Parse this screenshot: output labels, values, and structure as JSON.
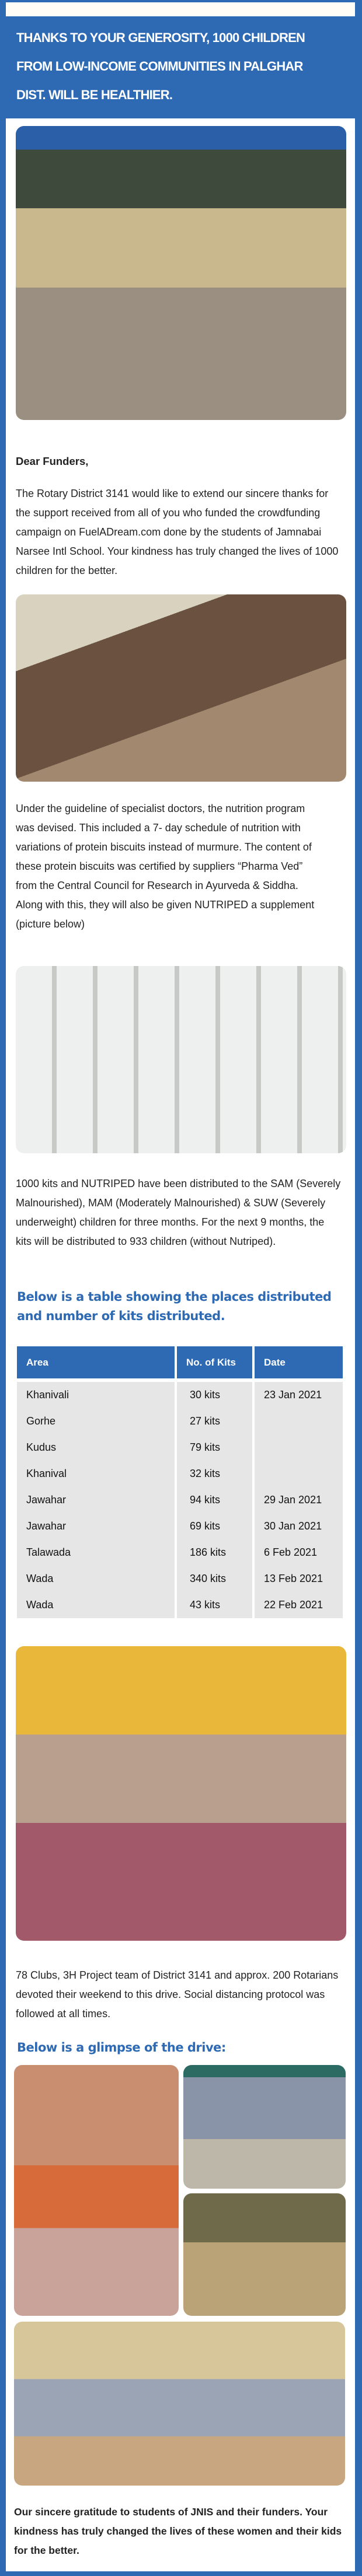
{
  "header": {
    "title_lines": [
      "Thanks to your generosity, 1000 children",
      "from low-income communities in Palghar",
      "Dist.  will be healthier."
    ]
  },
  "greeting": "Dear Funders,",
  "paragraphs": {
    "intro": "The Rotary District 3141 would like to extend our sincere thanks for the support received from all of you who funded the crowdfunding campaign on FuelADream.com done by the students of Jamnabai Narsee Intl School. Your kindness has truly changed the lives of 1000 children for the better.",
    "program": "Under the guideline of specialist doctors, the nutrition program was devised. This included a  7- day schedule of nutrition with variations of protein biscuits instead of murmure. The content of these protein biscuits was certified by suppliers “Pharma Ved” from the Central Council for Research in Ayurveda & Siddha. Along with this, they will also be given NUTRIPED a supplement  (picture below)",
    "distribution": "1000 kits and NUTRIPED have been distributed to the SAM (Severely Malnourished), MAM (Moderately Malnourished) & SUW (Severely underweight) children for three months. For the next 9 months, the kits will be distributed to 933 children (without Nutriped).",
    "team": "78 Clubs, 3H Project team of District 3141 and approx. 200 Rotarians devoted their weekend to this drive. Social distancing protocol was followed at all times.",
    "closing": "Our sincere gratitude to students of JNIS and their funders. Your kindness has truly changed the lives of these women and their kids for the better."
  },
  "headings": {
    "table": "Below is a table showing the places distributed and number of kits distributed.",
    "glimpse": "Below is a glimpse of the drive:"
  },
  "table": {
    "columns": [
      "Area",
      "No. of Kits",
      "Date"
    ],
    "rows": [
      [
        "Khanivali",
        "30 kits",
        "23 Jan 2021"
      ],
      [
        "Gorhe",
        "27 kits",
        ""
      ],
      [
        "Kudus",
        "79 kits",
        ""
      ],
      [
        "Khanival",
        "32 kits",
        ""
      ],
      [
        "Jawahar",
        "94 kits",
        "29 Jan 2021"
      ],
      [
        "Jawahar",
        "69 kits",
        "30 Jan 2021"
      ],
      [
        "Talawada",
        "186 kits",
        "6 Feb 2021"
      ],
      [
        "Wada",
        "340 kits",
        "13 Feb 2021"
      ],
      [
        "Wada",
        "43 kits",
        "22 Feb 2021"
      ]
    ]
  },
  "colors": {
    "brand_blue": "#2e6ab4",
    "table_cell": "#e6e6e6"
  }
}
